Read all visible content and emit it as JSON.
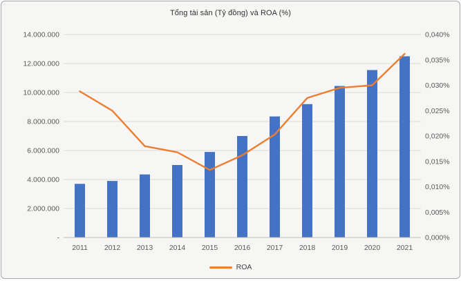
{
  "chart": {
    "title": "Tổng tài sản (Tỷ đồng) và ROA (%)",
    "legend_label": "ROA"
  },
  "chart_data": {
    "type": "bar+line",
    "title": "Tổng tài sản (Tỷ đồng) và ROA (%)",
    "categories": [
      "2011",
      "2012",
      "2013",
      "2014",
      "2015",
      "2016",
      "2017",
      "2018",
      "2019",
      "2020",
      "2021"
    ],
    "series": [
      {
        "name": "Tổng tài sản",
        "type": "bar",
        "axis": "left",
        "color": "#4472C4",
        "values": [
          3700000,
          3900000,
          4350000,
          5000000,
          5900000,
          7000000,
          8350000,
          9200000,
          10450000,
          11550000,
          12500000
        ]
      },
      {
        "name": "ROA",
        "type": "line",
        "axis": "right",
        "color": "#ED7D31",
        "values": [
          0.0288,
          0.025,
          0.018,
          0.0168,
          0.0133,
          0.0162,
          0.0203,
          0.0275,
          0.0295,
          0.03,
          0.0362
        ]
      }
    ],
    "left_axis": {
      "min": 0,
      "max": 14000000,
      "tick_step": 2000000,
      "tick_labels": [
        "-",
        "2.000.000",
        "4.000.000",
        "6.000.000",
        "8.000.000",
        "10.000.000",
        "12.000.000",
        "14.000.000"
      ]
    },
    "right_axis": {
      "min": 0,
      "max": 0.04,
      "tick_step": 0.005,
      "tick_labels": [
        "0,000%",
        "0,005%",
        "0,010%",
        "0,015%",
        "0,020%",
        "0,025%",
        "0,030%",
        "0,035%",
        "0,040%"
      ]
    },
    "grid": true,
    "legend_position": "bottom",
    "legend_entries": [
      "ROA"
    ]
  },
  "colors": {
    "bar": "#4472C4",
    "line": "#ED7D31",
    "gridline": "#D9D9D9",
    "axis_line": "#BFBFBF",
    "tick_text": "#595959",
    "title_text": "#303030",
    "background": "#F6F6F4",
    "border": "#A6A6A6"
  }
}
